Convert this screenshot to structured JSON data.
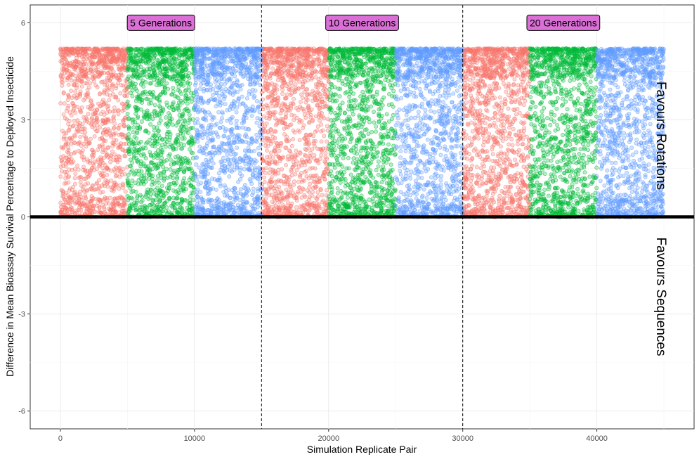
{
  "chart_data": {
    "type": "scatter",
    "xlabel": "Simulation Replicate Pair",
    "ylabel": "Difference in Mean Bioassay Survival Percentage to Deployed Insecticide",
    "xlim": [
      -2250,
      47250
    ],
    "ylim": [
      -6.55,
      6.55
    ],
    "x_ticks": [
      0,
      10000,
      20000,
      30000,
      40000
    ],
    "x_tick_labels": [
      "0",
      "10000",
      "20000",
      "30000",
      "40000"
    ],
    "y_ticks": [
      -6,
      -3,
      0,
      3,
      6
    ],
    "y_tick_labels": [
      "-6",
      "-3",
      "0",
      "3",
      "6"
    ],
    "grid": true,
    "zero_line": 0,
    "dividers": [
      15000,
      30000
    ],
    "group_labels": [
      {
        "text": "5 Generations",
        "x": 7500,
        "y": 6
      },
      {
        "text": "10 Generations",
        "x": 22500,
        "y": 6
      },
      {
        "text": "20 Generations",
        "x": 37500,
        "y": 6
      }
    ],
    "annotations": {
      "upper": "Favours Rotations",
      "lower": "Favours Sequences"
    },
    "series": [
      {
        "color": "#F8766D",
        "blocks": [
          [
            0,
            5000
          ],
          [
            15000,
            20000
          ],
          [
            30000,
            35000
          ]
        ]
      },
      {
        "color": "#00BA38",
        "blocks": [
          [
            5000,
            10000
          ],
          [
            20000,
            25000
          ],
          [
            35000,
            40000
          ]
        ]
      },
      {
        "color": "#619CFF",
        "blocks": [
          [
            10000,
            15000
          ],
          [
            25000,
            30000
          ],
          [
            40000,
            45000
          ]
        ]
      }
    ],
    "point_value_range": [
      0,
      5.2
    ],
    "label_fill": "#DA70D6"
  }
}
